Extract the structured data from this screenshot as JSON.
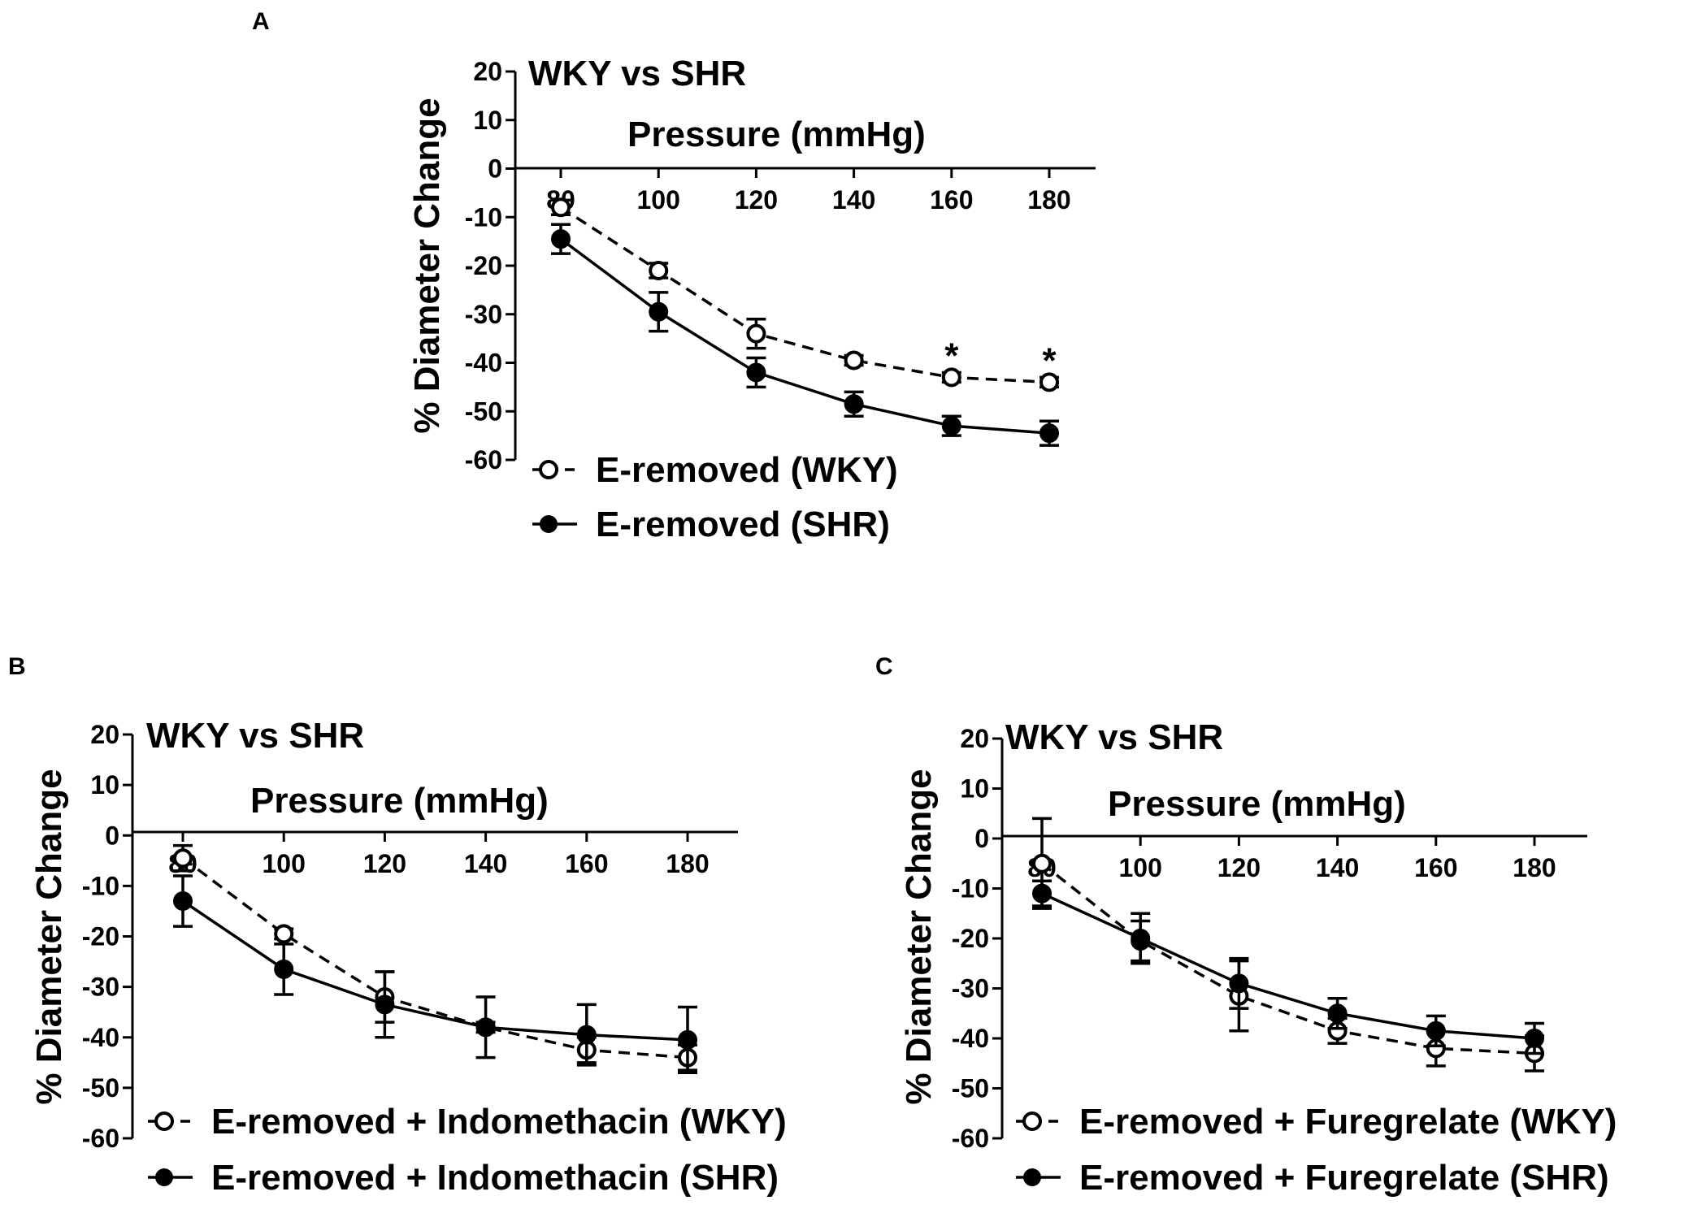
{
  "chart_data": [
    {
      "panel": "A",
      "type": "line",
      "title": "WKY vs SHR",
      "xlabel": "Pressure (mmHg)",
      "ylabel": "% Diameter Change",
      "x": [
        80,
        100,
        120,
        140,
        160,
        180
      ],
      "ylim": [
        -60,
        20
      ],
      "yticks": [
        20,
        10,
        0,
        -10,
        -20,
        -30,
        -40,
        -50,
        -60
      ],
      "series": [
        {
          "name": "E-removed (WKY)",
          "marker": "open-circle",
          "line": "dashed",
          "values": [
            -8,
            -21,
            -34,
            -39.5,
            -43,
            -44
          ],
          "errors": [
            1.5,
            1.5,
            3,
            1,
            1,
            1
          ]
        },
        {
          "name": "E-removed (SHR)",
          "marker": "filled-circle",
          "line": "solid",
          "values": [
            -14.5,
            -29.5,
            -42,
            -48.5,
            -53,
            -54.5
          ],
          "errors": [
            3,
            4,
            3,
            2.5,
            2,
            2.5
          ]
        }
      ],
      "annotations": [
        {
          "x": 160,
          "text": "*"
        },
        {
          "x": 180,
          "text": "*"
        }
      ]
    },
    {
      "panel": "B",
      "type": "line",
      "title": "WKY vs SHR",
      "xlabel": "Pressure (mmHg)",
      "ylabel": "% Diameter Change",
      "x": [
        80,
        100,
        120,
        140,
        160,
        180
      ],
      "ylim": [
        -60,
        20
      ],
      "yticks": [
        20,
        10,
        0,
        -10,
        -20,
        -30,
        -40,
        -50,
        -60
      ],
      "series": [
        {
          "name": "E-removed + Indomethacin (WKY)",
          "marker": "open-circle",
          "line": "dashed",
          "values": [
            -4.5,
            -19.5,
            -32,
            -38,
            -42.5,
            -44
          ],
          "errors": [
            2.5,
            1,
            5,
            1,
            2.5,
            2.5
          ]
        },
        {
          "name": "E-removed + Indomethacin (SHR)",
          "marker": "filled-circle",
          "line": "solid",
          "values": [
            -13,
            -26.5,
            -33.5,
            -38,
            -39.5,
            -40.5
          ],
          "errors": [
            5,
            5,
            6.5,
            6,
            6,
            6.5
          ]
        }
      ],
      "annotations": []
    },
    {
      "panel": "C",
      "type": "line",
      "title": "WKY vs SHR",
      "xlabel": "Pressure (mmHg)",
      "ylabel": "% Diameter Change",
      "x": [
        80,
        100,
        120,
        140,
        160,
        180
      ],
      "ylim": [
        -60,
        20
      ],
      "yticks": [
        20,
        10,
        0,
        -10,
        -20,
        -30,
        -40,
        -50,
        -60
      ],
      "series": [
        {
          "name": "E-removed + Furegrelate (WKY)",
          "marker": "open-circle",
          "line": "dashed",
          "values": [
            -5,
            -20.5,
            -31.5,
            -38.5,
            -42,
            -43
          ],
          "errors": [
            9,
            4,
            7,
            2.5,
            3.5,
            3.5
          ]
        },
        {
          "name": "E-removed + Furegrelate (SHR)",
          "marker": "filled-circle",
          "line": "solid",
          "values": [
            -11,
            -20,
            -29,
            -35,
            -38.5,
            -40
          ],
          "errors": [
            2.5,
            5,
            5,
            3,
            3,
            3
          ]
        }
      ],
      "annotations": []
    }
  ]
}
